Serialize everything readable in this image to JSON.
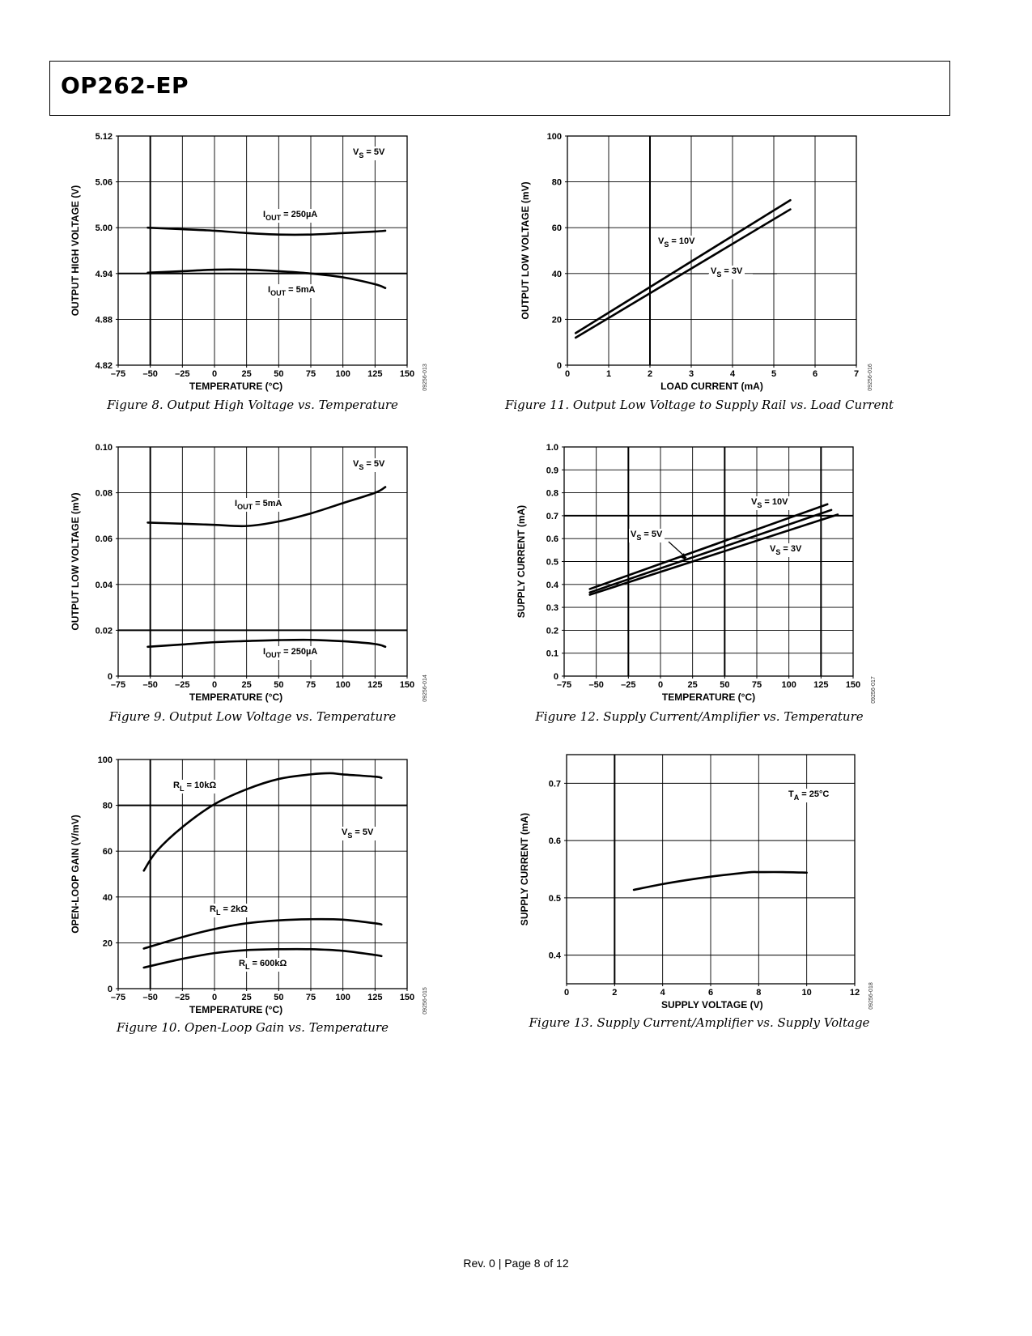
{
  "header": {
    "title": "OP262-EP"
  },
  "footer": {
    "text": "Rev. 0 | Page 8 of 12"
  },
  "figures": [
    {
      "caption": "Figure 8. Output High Voltage vs. Temperature",
      "code": "09256-013"
    },
    {
      "caption": "Figure 9. Output Low Voltage vs. Temperature",
      "code": "09256-014"
    },
    {
      "caption": "Figure 10. Open-Loop Gain vs. Temperature",
      "code": "09256-015"
    },
    {
      "caption": "Figure 11. Output Low Voltage to Supply Rail vs. Load Current",
      "code": "09256-016"
    },
    {
      "caption": "Figure 12. Supply Current/Amplifier vs. Temperature",
      "code": "09256-017"
    },
    {
      "caption": "Figure 13. Supply Current/Amplifier vs. Supply Voltage",
      "code": "09256-018"
    }
  ],
  "chart_data": [
    {
      "type": "line",
      "xlabel": "TEMPERATURE (°C)",
      "ylabel": "OUTPUT HIGH VOLTAGE (V)",
      "xlim": [
        -75,
        150
      ],
      "ylim": [
        4.82,
        5.12
      ],
      "xticks": [
        "–75",
        "–50",
        "–25",
        "0",
        "25",
        "50",
        "75",
        "100",
        "125",
        "150"
      ],
      "yticks": [
        "4.82",
        "4.88",
        "4.94",
        "5.00",
        "5.06",
        "5.12"
      ],
      "grid": true,
      "annotations": [
        {
          "main": "V",
          "sub": "S",
          "rest": " = 5V"
        }
      ],
      "series": [
        {
          "name": "IOUT = 250µA",
          "label": {
            "main": "I",
            "sub": "OUT",
            "rest": " = 250µA"
          },
          "x": [
            -52,
            -25,
            0,
            25,
            50,
            75,
            100,
            125,
            133
          ],
          "y": [
            5.0,
            4.998,
            4.996,
            4.993,
            4.991,
            4.991,
            4.993,
            4.995,
            4.996
          ]
        },
        {
          "name": "IOUT = 5mA",
          "label": {
            "main": "I",
            "sub": "OUT",
            "rest": " = 5mA"
          },
          "x": [
            -52,
            -25,
            0,
            25,
            50,
            75,
            100,
            125,
            133
          ],
          "y": [
            4.941,
            4.943,
            4.945,
            4.945,
            4.943,
            4.94,
            4.935,
            4.926,
            4.921
          ]
        }
      ]
    },
    {
      "type": "line",
      "xlabel": "TEMPERATURE (°C)",
      "ylabel": "OUTPUT LOW VOLTAGE (mV)",
      "xlim": [
        -75,
        150
      ],
      "ylim": [
        0,
        0.1
      ],
      "xticks": [
        "–75",
        "–50",
        "–25",
        "0",
        "25",
        "50",
        "75",
        "100",
        "125",
        "150"
      ],
      "yticks": [
        "0",
        "0.02",
        "0.04",
        "0.06",
        "0.08",
        "0.10"
      ],
      "grid": true,
      "annotations": [
        {
          "main": "V",
          "sub": "S",
          "rest": " = 5V"
        }
      ],
      "series": [
        {
          "name": "IOUT = 5mA",
          "label": {
            "main": "I",
            "sub": "OUT",
            "rest": " = 5mA"
          },
          "x": [
            -52,
            -25,
            0,
            25,
            50,
            75,
            100,
            125,
            133
          ],
          "y": [
            0.067,
            0.0665,
            0.066,
            0.0655,
            0.0675,
            0.071,
            0.0755,
            0.08,
            0.0825
          ]
        },
        {
          "name": "IOUT = 250µA",
          "label": {
            "main": "I",
            "sub": "OUT",
            "rest": " = 250µA"
          },
          "x": [
            -52,
            -25,
            0,
            25,
            50,
            75,
            100,
            125,
            133
          ],
          "y": [
            0.0128,
            0.0138,
            0.0148,
            0.0153,
            0.0157,
            0.0158,
            0.0152,
            0.014,
            0.0128
          ]
        }
      ]
    },
    {
      "type": "line",
      "xlabel": "TEMPERATURE (°C)",
      "ylabel": "OPEN-LOOP GAIN (V/mV)",
      "xlim": [
        -75,
        150
      ],
      "ylim": [
        0,
        100
      ],
      "xticks": [
        "–75",
        "–50",
        "–25",
        "0",
        "25",
        "50",
        "75",
        "100",
        "125",
        "150"
      ],
      "yticks": [
        "0",
        "20",
        "40",
        "60",
        "80",
        "100"
      ],
      "grid": true,
      "annotations": [
        {
          "main": "V",
          "sub": "S",
          "rest": " = 5V"
        }
      ],
      "series": [
        {
          "name": "RL = 10kΩ",
          "label": {
            "main": "R",
            "sub": "L",
            "rest": " = 10kΩ"
          },
          "x": [
            -55,
            -45,
            -25,
            0,
            25,
            50,
            75,
            90,
            100,
            125,
            130
          ],
          "y": [
            51.5,
            60,
            70.5,
            80.5,
            87,
            91.5,
            93.5,
            94,
            93.5,
            92.5,
            92
          ]
        },
        {
          "name": "RL = 2kΩ",
          "label": {
            "main": "R",
            "sub": "L",
            "rest": " = 2kΩ"
          },
          "x": [
            -55,
            -25,
            0,
            25,
            50,
            75,
            100,
            125,
            130
          ],
          "y": [
            17.5,
            22.5,
            26,
            28.5,
            29.8,
            30.3,
            30.1,
            28.5,
            28
          ]
        },
        {
          "name": "RL = 600kΩ",
          "label": {
            "main": "R",
            "sub": "L",
            "rest": " = 600kΩ"
          },
          "x": [
            -55,
            -25,
            0,
            25,
            50,
            75,
            100,
            125,
            130
          ],
          "y": [
            9.2,
            13,
            15.5,
            16.8,
            17.2,
            17.2,
            16.5,
            14.7,
            14.2
          ]
        }
      ]
    },
    {
      "type": "line",
      "xlabel": "LOAD CURRENT (mA)",
      "ylabel": "OUTPUT LOW VOLTAGE (mV)",
      "xlim": [
        0,
        7
      ],
      "ylim": [
        0,
        100
      ],
      "xticks": [
        "0",
        "1",
        "2",
        "3",
        "4",
        "5",
        "6",
        "7"
      ],
      "yticks": [
        "0",
        "20",
        "40",
        "60",
        "80",
        "100"
      ],
      "grid": true,
      "series": [
        {
          "name": "VS = 10V",
          "label": {
            "main": "V",
            "sub": "S",
            "rest": " = 10V"
          },
          "x": [
            0.2,
            5.4
          ],
          "y": [
            14,
            72
          ]
        },
        {
          "name": "VS = 3V",
          "label": {
            "main": "V",
            "sub": "S",
            "rest": " = 3V"
          },
          "x": [
            0.2,
            5.4
          ],
          "y": [
            12,
            68
          ]
        }
      ]
    },
    {
      "type": "line",
      "xlabel": "TEMPERATURE (°C)",
      "ylabel": "SUPPLY CURRENT (mA)",
      "xlim": [
        -75,
        150
      ],
      "ylim": [
        0,
        1.0
      ],
      "xticks": [
        "–75",
        "–50",
        "–25",
        "0",
        "25",
        "50",
        "75",
        "100",
        "125",
        "150"
      ],
      "yticks": [
        "0",
        "0.1",
        "0.2",
        "0.3",
        "0.4",
        "0.5",
        "0.6",
        "0.7",
        "0.8",
        "0.9",
        "1.0"
      ],
      "grid": true,
      "series": [
        {
          "name": "VS = 10V",
          "label": {
            "main": "V",
            "sub": "S",
            "rest": " = 10V"
          },
          "x": [
            -55,
            130
          ],
          "y": [
            0.38,
            0.75
          ]
        },
        {
          "name": "VS = 5V",
          "label": {
            "main": "V",
            "sub": "S",
            "rest": " = 5V"
          },
          "x": [
            -55,
            133
          ],
          "y": [
            0.365,
            0.725
          ]
        },
        {
          "name": "VS = 3V",
          "label": {
            "main": "V",
            "sub": "S",
            "rest": " = 3V"
          },
          "x": [
            -55,
            138
          ],
          "y": [
            0.355,
            0.705
          ]
        }
      ]
    },
    {
      "type": "line",
      "xlabel": "SUPPLY VOLTAGE (V)",
      "ylabel": "SUPPLY CURRENT (mA)",
      "xlim": [
        0,
        12
      ],
      "ylim": [
        0.35,
        0.75
      ],
      "xticks": [
        "0",
        "2",
        "4",
        "6",
        "8",
        "10",
        "12"
      ],
      "yticks": [
        "0.4",
        "0.5",
        "0.6",
        "0.7"
      ],
      "grid": true,
      "annotations": [
        {
          "main": "T",
          "sub": "A",
          "rest": " = 25°C"
        }
      ],
      "series": [
        {
          "name": "TA = 25°C",
          "x": [
            2.8,
            4,
            5,
            6,
            7,
            7.7,
            8,
            9,
            10
          ],
          "y": [
            0.514,
            0.524,
            0.531,
            0.537,
            0.542,
            0.545,
            0.545,
            0.545,
            0.544
          ]
        }
      ]
    }
  ]
}
